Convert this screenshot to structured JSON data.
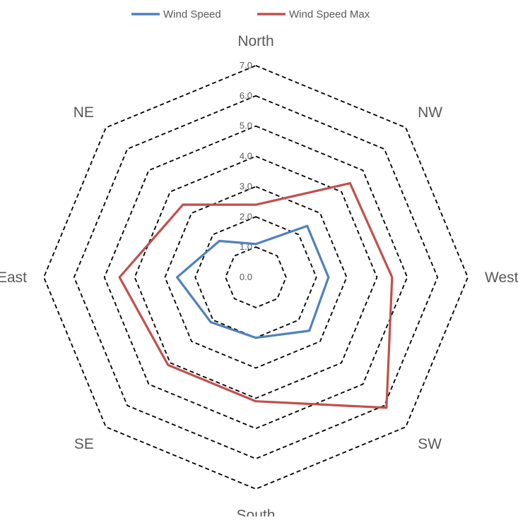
{
  "chart_data": {
    "type": "radar",
    "categories": [
      "North",
      "NW",
      "West",
      "SW",
      "South",
      "SE",
      "East",
      "NE"
    ],
    "ticks": [
      "0.0",
      "1.0",
      "2.0",
      "3.0",
      "4.0",
      "5.0",
      "6.0",
      "7.0"
    ],
    "rlim": [
      0,
      7
    ],
    "grid": true,
    "grid_style": "dashed",
    "legend_position": "top",
    "series": [
      {
        "name": "Wind Speed",
        "color": "#4F81BD",
        "values": [
          1.1,
          2.4,
          2.4,
          2.5,
          2.0,
          2.1,
          2.6,
          1.7
        ]
      },
      {
        "name": "Wind Speed Max",
        "color": "#C0504D",
        "values": [
          2.4,
          4.4,
          4.5,
          6.1,
          4.1,
          4.1,
          4.5,
          3.4
        ]
      }
    ]
  }
}
